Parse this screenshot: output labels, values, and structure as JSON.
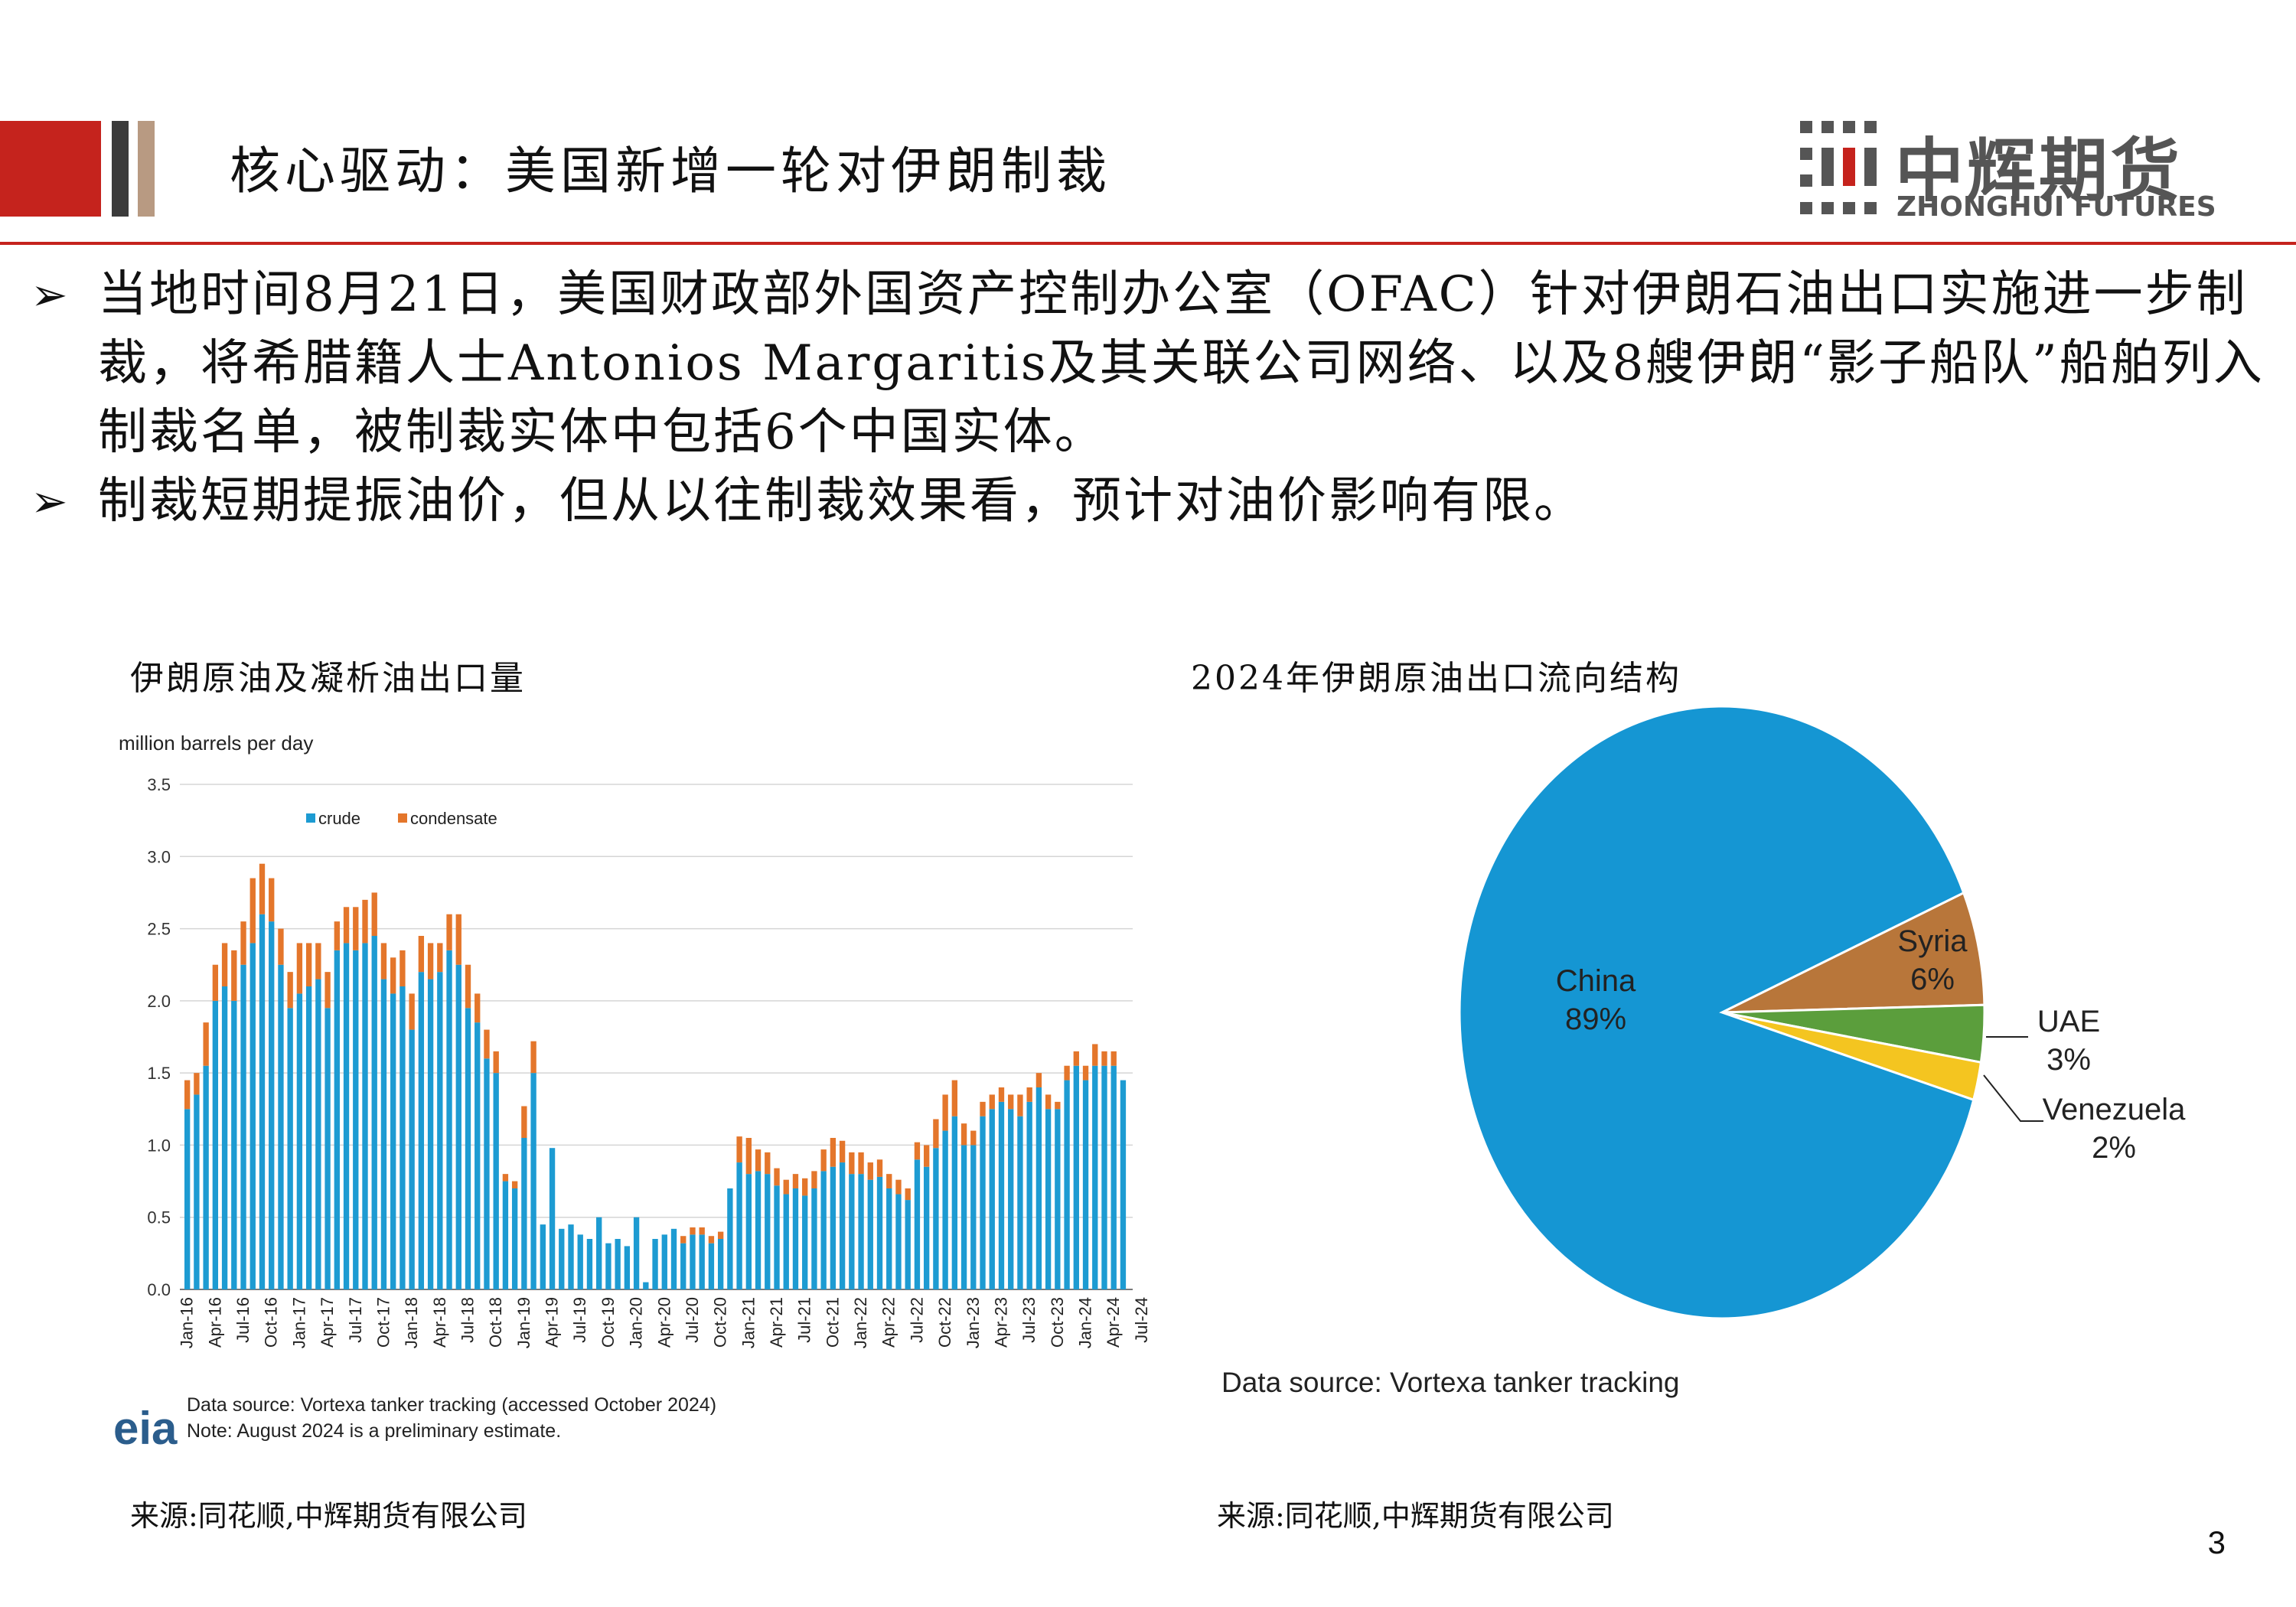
{
  "header": {
    "title": "核心驱动：美国新增一轮对伊朗制裁",
    "logo_cn": "中辉期货",
    "logo_en": "ZHONGHUI FUTURES"
  },
  "bullets": [
    {
      "marker": "➢",
      "text": "当地时间8月21日，美国财政部外国资产控制办公室（OFAC）针对伊朗石油出口实施进一步制裁，将希腊籍人士Antonios Margaritis及其关联公司网络、以及8艘伊朗“影子船队”船舶列入制裁名单，被制裁实体中包括6个中国实体。"
    },
    {
      "marker": "➢",
      "text": "制裁短期提振油价，但从以往制裁效果看，预计对油价影响有限。"
    }
  ],
  "left_panel": {
    "caption": "伊朗原油及凝析油出口量",
    "source": "来源:同花顺,中辉期货有限公司",
    "eia_logo": "eia",
    "note_line1": "Data source: Vortexa tanker tracking (accessed October 2024)",
    "note_line2": "Note: August 2024 is a preliminary estimate."
  },
  "right_panel": {
    "caption": "2024年伊朗原油出口流向结构",
    "data_source": "Data source: Vortexa tanker tracking",
    "source": "来源:同花顺,中辉期货有限公司"
  },
  "page_number": "3",
  "chart_data": [
    {
      "type": "bar",
      "stacked": true,
      "ylabel": "million barrels per day",
      "ylim": [
        0,
        3.5
      ],
      "yticks": [
        "0.0",
        "0.5",
        "1.0",
        "1.5",
        "2.0",
        "2.5",
        "3.0",
        "3.5"
      ],
      "grid": true,
      "legend_position": "top-left",
      "xtick_labels": [
        "Jan-16",
        "Apr-16",
        "Jul-16",
        "Oct-16",
        "Jan-17",
        "Apr-17",
        "Jul-17",
        "Oct-17",
        "Jan-18",
        "Apr-18",
        "Jul-18",
        "Oct-18",
        "Jan-19",
        "Apr-19",
        "Jul-19",
        "Oct-19",
        "Jan-20",
        "Apr-20",
        "Jul-20",
        "Oct-20",
        "Jan-21",
        "Apr-21",
        "Jul-21",
        "Oct-21",
        "Jan-22",
        "Apr-22",
        "Jul-22",
        "Oct-22",
        "Jan-23",
        "Apr-23",
        "Jul-23",
        "Oct-23",
        "Jan-24",
        "Apr-24",
        "Jul-24"
      ],
      "series": [
        {
          "name": "crude",
          "color": "#1d9bd2",
          "values": [
            1.25,
            1.35,
            1.55,
            2.0,
            2.1,
            2.0,
            2.25,
            2.4,
            2.6,
            2.55,
            2.25,
            1.95,
            2.05,
            2.1,
            2.15,
            1.95,
            2.35,
            2.4,
            2.35,
            2.4,
            2.45,
            2.15,
            2.05,
            2.1,
            1.8,
            2.2,
            2.15,
            2.2,
            2.35,
            2.25,
            1.95,
            1.85,
            1.6,
            1.5,
            0.75,
            0.7,
            1.05,
            1.5,
            0.45,
            0.98,
            0.42,
            0.45,
            0.38,
            0.35,
            0.5,
            0.32,
            0.35,
            0.3,
            0.5,
            0.05,
            0.35,
            0.38,
            0.42,
            0.32,
            0.38,
            0.38,
            0.32,
            0.35,
            0.7,
            0.88,
            0.8,
            0.82,
            0.8,
            0.72,
            0.66,
            0.7,
            0.65,
            0.7,
            0.82,
            0.85,
            0.88,
            0.8,
            0.8,
            0.76,
            0.78,
            0.7,
            0.66,
            0.62,
            0.9,
            0.85,
            0.98,
            1.1,
            1.2,
            1.0,
            1.0,
            1.2,
            1.25,
            1.3,
            1.25,
            1.2,
            1.3,
            1.4,
            1.25,
            1.25,
            1.45,
            1.55,
            1.45,
            1.55,
            1.55,
            1.55,
            1.45
          ]
        },
        {
          "name": "condensate",
          "color": "#e4762b",
          "values": [
            0.2,
            0.15,
            0.3,
            0.25,
            0.3,
            0.35,
            0.3,
            0.45,
            0.35,
            0.3,
            0.25,
            0.25,
            0.35,
            0.3,
            0.25,
            0.25,
            0.2,
            0.25,
            0.3,
            0.3,
            0.3,
            0.25,
            0.25,
            0.25,
            0.25,
            0.25,
            0.25,
            0.2,
            0.25,
            0.35,
            0.3,
            0.2,
            0.2,
            0.15,
            0.05,
            0.05,
            0.22,
            0.22,
            0.0,
            0.0,
            0.0,
            0.0,
            0.0,
            0.0,
            0.0,
            0.0,
            0.0,
            0.0,
            0.0,
            0.0,
            0.0,
            0.0,
            0.0,
            0.05,
            0.05,
            0.05,
            0.05,
            0.05,
            0.0,
            0.18,
            0.25,
            0.15,
            0.15,
            0.12,
            0.1,
            0.1,
            0.12,
            0.12,
            0.15,
            0.2,
            0.15,
            0.15,
            0.15,
            0.12,
            0.12,
            0.1,
            0.1,
            0.08,
            0.12,
            0.15,
            0.2,
            0.25,
            0.25,
            0.15,
            0.1,
            0.1,
            0.1,
            0.1,
            0.1,
            0.15,
            0.1,
            0.1,
            0.1,
            0.05,
            0.1,
            0.1,
            0.1,
            0.15,
            0.1,
            0.1,
            0.0
          ]
        }
      ]
    },
    {
      "type": "pie",
      "slices": [
        {
          "label": "China",
          "value": 89,
          "pct_label": "89%",
          "color": "#1596d3"
        },
        {
          "label": "Syria",
          "value": 6,
          "pct_label": "6%",
          "color": "#b8763a"
        },
        {
          "label": "UAE",
          "value": 3,
          "pct_label": "3%",
          "color": "#5b9e3c"
        },
        {
          "label": "Venezuela",
          "value": 2,
          "pct_label": "2%",
          "color": "#f4c520"
        }
      ]
    }
  ]
}
